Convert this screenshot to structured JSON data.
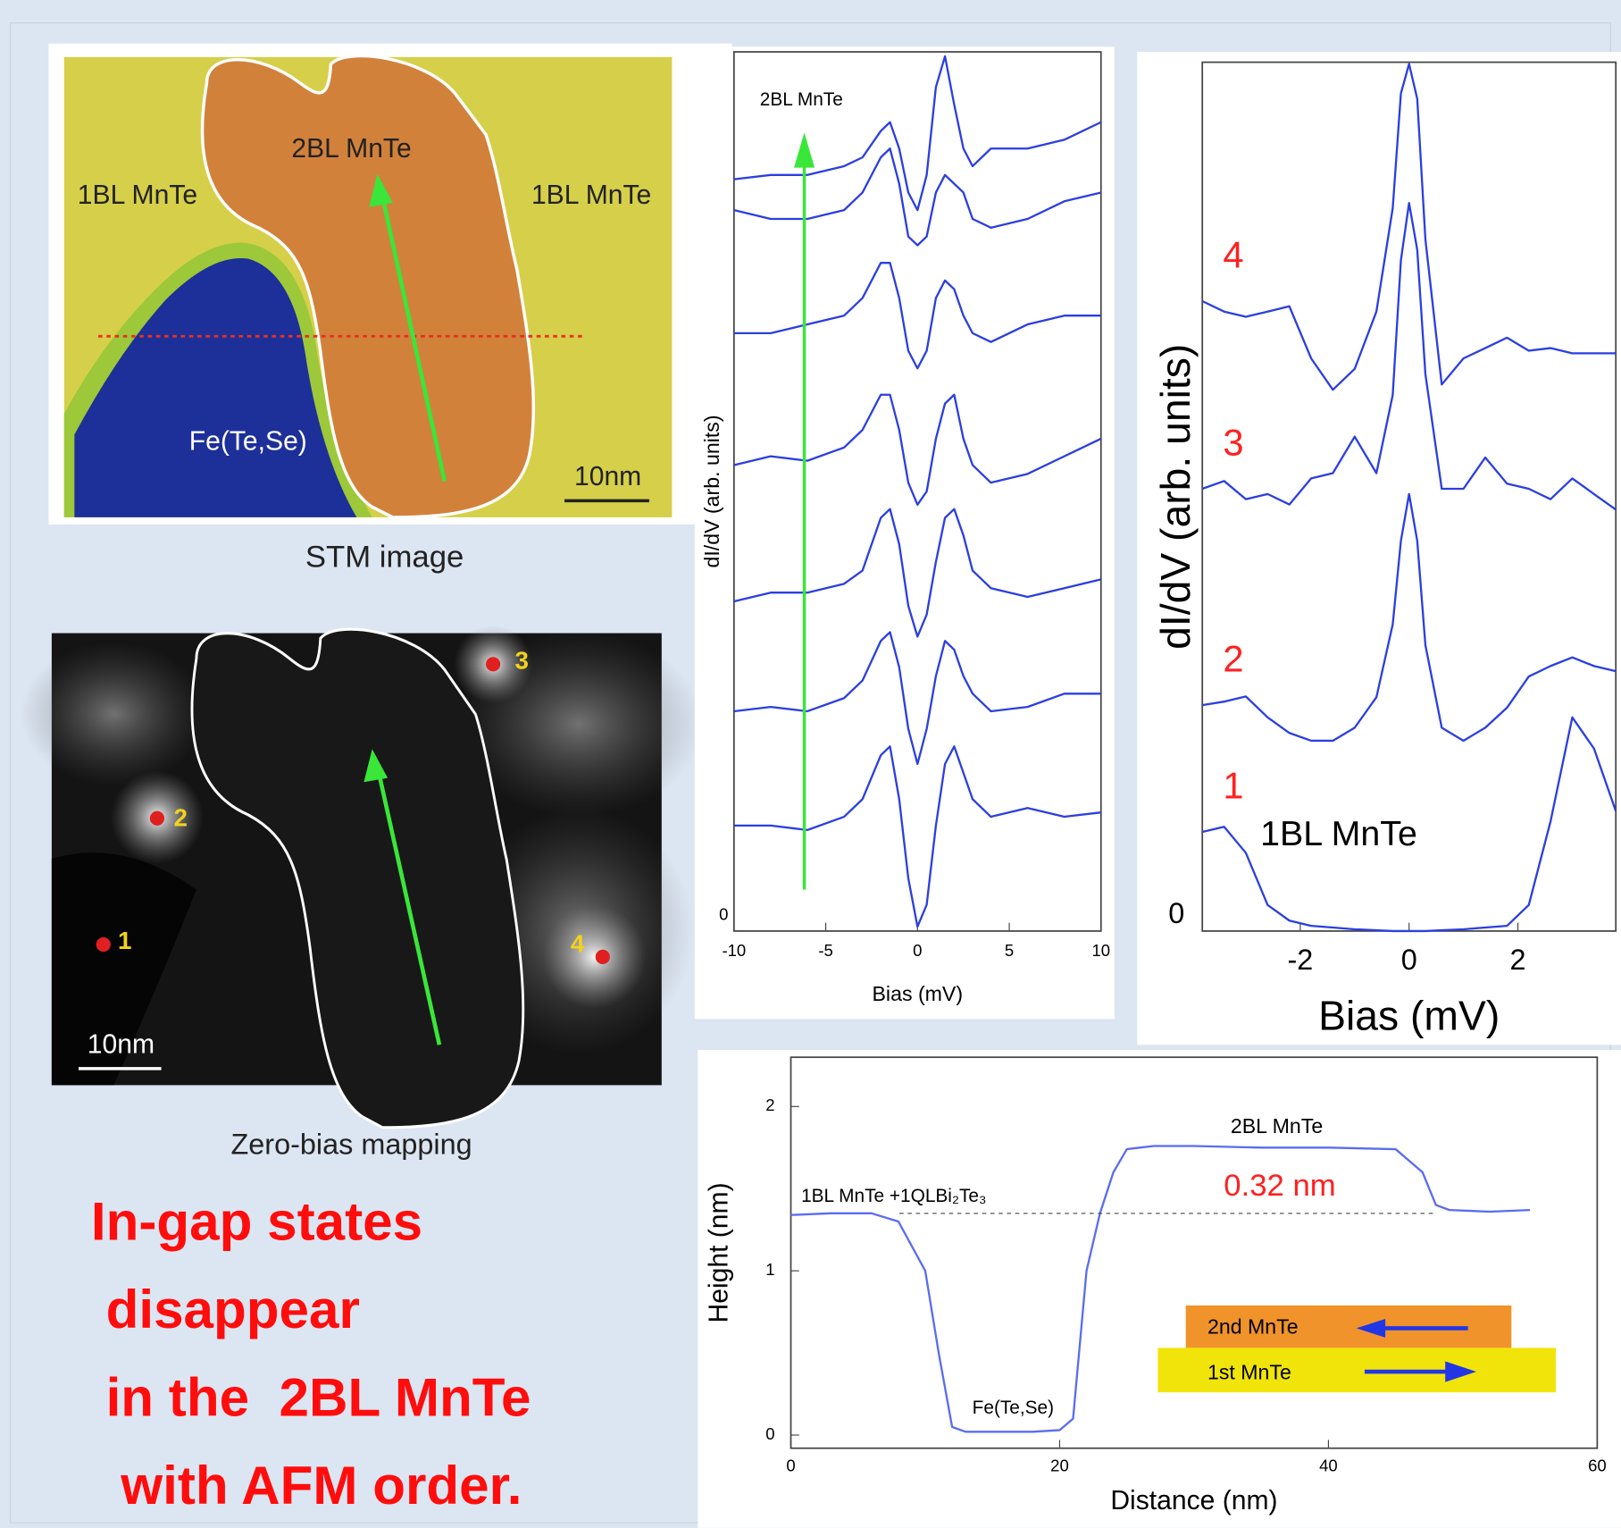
{
  "stm_image": {
    "labels": [
      "2BL MnTe",
      "1BL MnTe",
      "1BL MnTe",
      "Fe(Te,Se)"
    ],
    "scale_bar": "10nm",
    "caption": "STM image"
  },
  "zero_bias_map": {
    "points": [
      "1",
      "2",
      "3",
      "4"
    ],
    "scale_bar": "10nm",
    "caption": "Zero-bias mapping"
  },
  "conclusion": [
    "In-gap states",
    " disappear",
    " in the  2BL MnTe",
    "  with AFM order."
  ],
  "chart_data": [
    {
      "type": "line",
      "annotation": "2BL MnTe",
      "x_label": "Bias (mV)",
      "y_label": "dI/dV (arb. units)",
      "xlim": [
        -10,
        10
      ],
      "xticks": [
        -10,
        -5,
        0,
        5,
        10
      ],
      "ylim": [
        0,
        10
      ],
      "yticks": [
        0
      ],
      "x": [
        -10,
        -8,
        -6,
        -4,
        -3,
        -2,
        -1.5,
        -1,
        -0.5,
        0,
        0.5,
        1,
        1.5,
        2,
        2.5,
        3,
        4,
        6,
        8,
        10
      ],
      "series": [
        {
          "color": "#2b3fe0",
          "values": [
            1.2,
            1.2,
            1.15,
            1.3,
            1.5,
            2.0,
            2.1,
            1.5,
            0.6,
            0.05,
            0.3,
            1.2,
            1.9,
            2.1,
            1.8,
            1.5,
            1.3,
            1.4,
            1.3,
            1.35
          ]
        },
        {
          "color": "#2b3fe0",
          "values": [
            2.5,
            2.55,
            2.5,
            2.65,
            2.85,
            3.3,
            3.4,
            3.0,
            2.3,
            1.9,
            2.3,
            2.9,
            3.3,
            3.2,
            2.9,
            2.7,
            2.5,
            2.55,
            2.7,
            2.7
          ]
        },
        {
          "color": "#2b3fe0",
          "values": [
            3.75,
            3.85,
            3.85,
            3.95,
            4.1,
            4.7,
            4.8,
            4.4,
            3.7,
            3.35,
            3.6,
            4.2,
            4.7,
            4.8,
            4.5,
            4.1,
            3.9,
            3.8,
            3.9,
            4.0
          ]
        },
        {
          "color": "#2b3fe0",
          "values": [
            5.3,
            5.4,
            5.35,
            5.5,
            5.7,
            6.1,
            6.1,
            5.7,
            5.1,
            4.85,
            5.0,
            5.6,
            6.0,
            6.1,
            5.6,
            5.3,
            5.1,
            5.2,
            5.4,
            5.6
          ]
        },
        {
          "color": "#2b3fe0",
          "values": [
            6.8,
            6.8,
            6.9,
            7.0,
            7.2,
            7.6,
            7.6,
            7.2,
            6.6,
            6.4,
            6.6,
            7.2,
            7.4,
            7.3,
            7.0,
            6.8,
            6.7,
            6.9,
            7.0,
            7.0
          ]
        },
        {
          "color": "#2b3fe0",
          "values": [
            8.2,
            8.1,
            8.1,
            8.2,
            8.4,
            8.8,
            8.9,
            8.5,
            7.9,
            7.8,
            7.9,
            8.4,
            8.6,
            8.5,
            8.4,
            8.1,
            8.0,
            8.1,
            8.3,
            8.4
          ]
        },
        {
          "color": "#2b3fe0",
          "values": [
            8.55,
            8.6,
            8.6,
            8.7,
            8.8,
            9.1,
            9.2,
            8.9,
            8.4,
            8.2,
            8.6,
            9.6,
            9.95,
            9.4,
            8.9,
            8.7,
            8.9,
            8.9,
            9.0,
            9.2
          ]
        }
      ]
    },
    {
      "type": "line",
      "annotation": "1BL MnTe",
      "x_label": "Bias (mV)",
      "y_label": "dI/dV (arb. units)",
      "xlim": [
        -3.8,
        3.8
      ],
      "xticks": [
        -2,
        0,
        2
      ],
      "ylim": [
        0,
        10
      ],
      "yticks": [
        0
      ],
      "x": [
        -3.8,
        -3.4,
        -3,
        -2.6,
        -2.2,
        -1.8,
        -1.4,
        -1,
        -0.6,
        -0.3,
        -0.15,
        0,
        0.15,
        0.3,
        0.6,
        1,
        1.4,
        1.8,
        2.2,
        2.6,
        3,
        3.4,
        3.8
      ],
      "series": [
        {
          "name": "1",
          "color": "#2b3fe0",
          "label_color": "#ff2020",
          "values": [
            1.14,
            1.2,
            0.9,
            0.3,
            0.12,
            0.06,
            0.04,
            0.02,
            0.01,
            0,
            0,
            0,
            0,
            0,
            0.01,
            0.02,
            0.04,
            0.06,
            0.3,
            1.26,
            2.46,
            2.1,
            1.38
          ]
        },
        {
          "name": "2",
          "color": "#2b3fe0",
          "label_color": "#ff2020",
          "values": [
            2.6,
            2.64,
            2.7,
            2.46,
            2.28,
            2.19,
            2.19,
            2.34,
            2.69,
            3.53,
            4.49,
            5.03,
            4.49,
            3.29,
            2.34,
            2.19,
            2.34,
            2.57,
            2.93,
            3.05,
            3.15,
            3.05,
            2.99
          ]
        },
        {
          "name": "3",
          "color": "#2b3fe0",
          "label_color": "#ff2020",
          "values": [
            5.09,
            5.18,
            4.97,
            5.03,
            4.91,
            5.21,
            5.27,
            5.69,
            5.27,
            6.17,
            7.72,
            8.38,
            7.84,
            6.41,
            5.09,
            5.09,
            5.45,
            5.15,
            5.09,
            4.97,
            5.21,
            5.03,
            4.85
          ]
        },
        {
          "name": "4",
          "color": "#2b3fe0",
          "label_color": "#ff2020",
          "values": [
            7.25,
            7.13,
            7.07,
            7.13,
            7.19,
            6.59,
            6.23,
            6.47,
            7.13,
            8.32,
            9.64,
            9.98,
            9.58,
            7.96,
            6.29,
            6.59,
            6.71,
            6.83,
            6.68,
            6.71,
            6.65,
            6.65,
            6.65
          ]
        }
      ]
    },
    {
      "type": "line",
      "x_label": "Distance (nm)",
      "y_label": "Height (nm)",
      "annotations": [
        "2BL MnTe",
        "1BL MnTe +1QLBi₂Te₃",
        "0.32 nm",
        "Fe(Te,Se)",
        "2nd MnTe",
        "1st  MnTe"
      ],
      "xlim": [
        0,
        60
      ],
      "xticks": [
        0,
        20,
        40,
        60
      ],
      "ylim": [
        -0.08,
        2.3
      ],
      "yticks": [
        0,
        1,
        2
      ],
      "x": [
        0,
        3,
        6,
        8,
        10,
        11,
        12,
        13,
        15,
        18,
        20,
        21,
        22,
        23,
        24,
        25,
        27,
        30,
        35,
        40,
        45,
        47,
        48,
        49,
        52,
        55
      ],
      "series": [
        {
          "color": "#5a6cf0",
          "values": [
            1.34,
            1.35,
            1.35,
            1.3,
            1.0,
            0.5,
            0.05,
            0.02,
            0.02,
            0.02,
            0.03,
            0.1,
            1.0,
            1.35,
            1.6,
            1.74,
            1.76,
            1.76,
            1.75,
            1.75,
            1.74,
            1.6,
            1.4,
            1.37,
            1.36,
            1.37
          ]
        }
      ]
    }
  ]
}
